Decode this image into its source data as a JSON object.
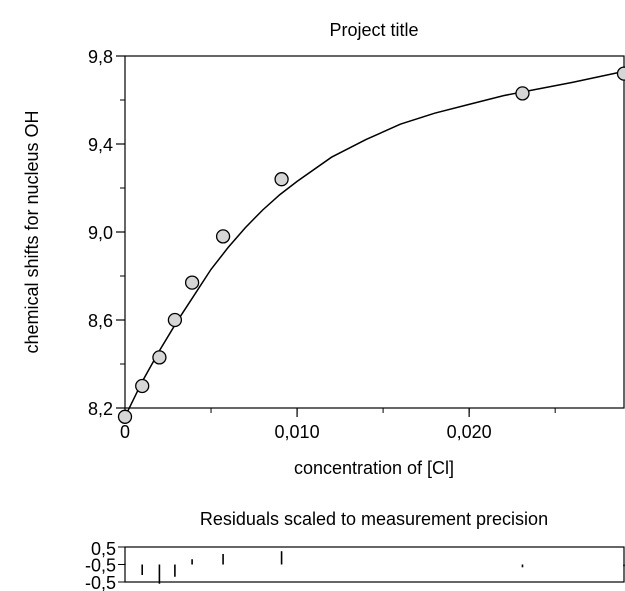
{
  "chart_data": [
    {
      "type": "scatter",
      "title": "Project title",
      "xlabel": "concentration of [Cl]",
      "ylabel": "chemical shifts for nucleus OH",
      "xlim": [
        0,
        0.029
      ],
      "ylim": [
        8.2,
        9.8
      ],
      "x_tick_values": [
        0,
        0.01,
        0.02
      ],
      "x_tick_labels": [
        "0",
        "0,010",
        "0,020"
      ],
      "y_tick_values": [
        8.2,
        8.6,
        9.0,
        9.4,
        9.8
      ],
      "y_tick_labels": [
        "8,2",
        "8,6",
        "9,0",
        "9,4",
        "9,8"
      ],
      "grid": false,
      "series": [
        {
          "points": [
            {
              "x": 0.0,
              "y": 8.16
            },
            {
              "x": 0.001,
              "y": 8.3
            },
            {
              "x": 0.002,
              "y": 8.43
            },
            {
              "x": 0.0029,
              "y": 8.6
            },
            {
              "x": 0.0039,
              "y": 8.77
            },
            {
              "x": 0.0057,
              "y": 8.98
            },
            {
              "x": 0.0091,
              "y": 9.24
            },
            {
              "x": 0.0231,
              "y": 9.63
            },
            {
              "x": 0.029,
              "y": 9.72
            }
          ]
        }
      ],
      "fit_curve": [
        {
          "x": 0.0,
          "y": 8.16
        },
        {
          "x": 0.001,
          "y": 8.32
        },
        {
          "x": 0.002,
          "y": 8.46
        },
        {
          "x": 0.003,
          "y": 8.59
        },
        {
          "x": 0.004,
          "y": 8.71
        },
        {
          "x": 0.005,
          "y": 8.83
        },
        {
          "x": 0.006,
          "y": 8.93
        },
        {
          "x": 0.007,
          "y": 9.02
        },
        {
          "x": 0.008,
          "y": 9.1
        },
        {
          "x": 0.009,
          "y": 9.17
        },
        {
          "x": 0.01,
          "y": 9.23
        },
        {
          "x": 0.012,
          "y": 9.34
        },
        {
          "x": 0.014,
          "y": 9.42
        },
        {
          "x": 0.016,
          "y": 9.49
        },
        {
          "x": 0.018,
          "y": 9.54
        },
        {
          "x": 0.02,
          "y": 9.58
        },
        {
          "x": 0.022,
          "y": 9.62
        },
        {
          "x": 0.024,
          "y": 9.65
        },
        {
          "x": 0.026,
          "y": 9.68
        },
        {
          "x": 0.029,
          "y": 9.73
        }
      ]
    },
    {
      "type": "bar",
      "title": "Residuals scaled to measurement precision",
      "ylim": [
        -0.5,
        0.5
      ],
      "y_tick_labels": [
        "0,5",
        "-0,5"
      ],
      "y_tick_overlap_label": "-0,5",
      "residuals": [
        {
          "x": 0.0,
          "r": 0.02
        },
        {
          "x": 0.001,
          "r": -0.3
        },
        {
          "x": 0.002,
          "r": -0.55
        },
        {
          "x": 0.0029,
          "r": -0.35
        },
        {
          "x": 0.0039,
          "r": 0.15
        },
        {
          "x": 0.0057,
          "r": 0.3
        },
        {
          "x": 0.0091,
          "r": 0.38
        },
        {
          "x": 0.0231,
          "r": -0.08
        },
        {
          "x": 0.029,
          "r": -0.05
        }
      ]
    }
  ]
}
